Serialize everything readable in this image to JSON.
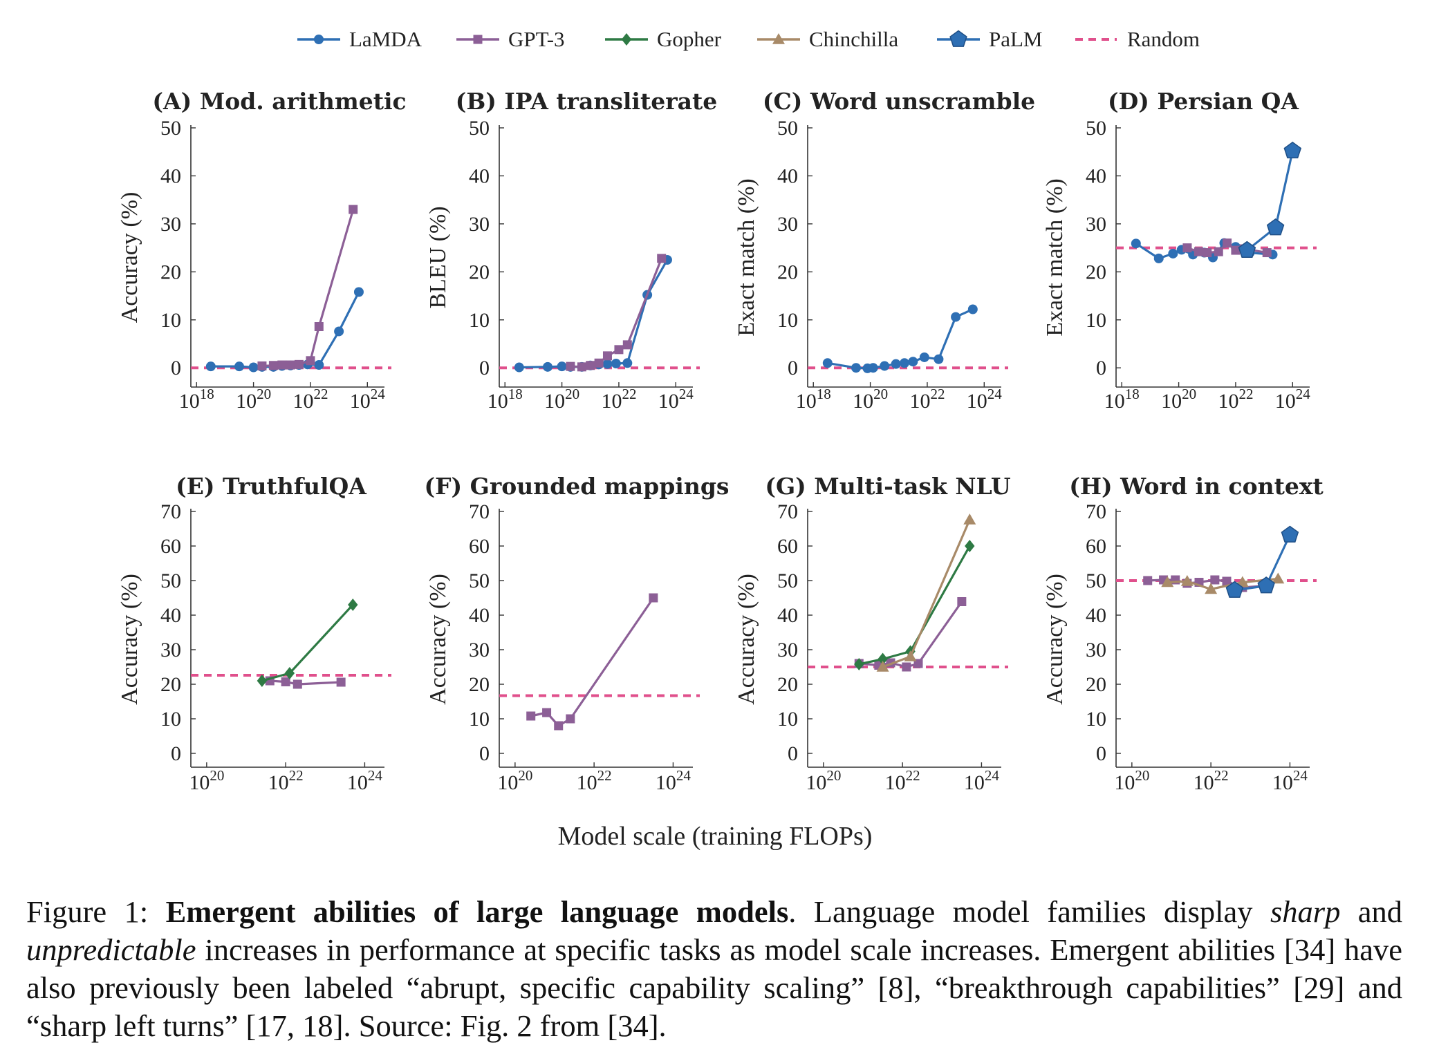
{
  "figure": {
    "shared_xlabel": "Model scale (training FLOPs)",
    "legend": [
      {
        "name": "LaMDA",
        "color": "#2e6fb4",
        "marker": "circle"
      },
      {
        "name": "GPT-3",
        "color": "#8c5f96",
        "marker": "square"
      },
      {
        "name": "Gopher",
        "color": "#2e7a44",
        "marker": "diamond"
      },
      {
        "name": "Chinchilla",
        "color": "#a88a68",
        "marker": "triangle"
      },
      {
        "name": "PaLM",
        "color": "#2e6fb4",
        "marker": "pentagon"
      },
      {
        "name": "Random",
        "color": "#e0508c",
        "marker": "dashed-line"
      }
    ]
  },
  "caption": {
    "prefix": "Figure 1: ",
    "bold": "Emergent abilities of large language models",
    "part1": ". Language model families display ",
    "italic1": "sharp",
    "part2": " and ",
    "italic2": "unpredictable",
    "part3": " increases in performance at specific tasks as model scale increases. Emergent abilities [34] have also previously been labeled “abrupt, specific capability scaling” [8], “breakthrough capabilities” [29] and “sharp left turns” [17, 18]. Source: Fig. 2 from [34]."
  },
  "chart_data": [
    {
      "type": "line",
      "title": "(A) Mod. arithmetic",
      "xlabel": "",
      "ylabel": "Accuracy (%)",
      "x_scale": "log10",
      "xlim": [
        17.8,
        24.6
      ],
      "xticks": [
        18,
        20,
        22,
        24
      ],
      "ylim": [
        -4,
        50
      ],
      "yticks": [
        0,
        10,
        20,
        30,
        40,
        50
      ],
      "random": 0,
      "series": [
        {
          "name": "LaMDA",
          "x": [
            18.5,
            19.5,
            20.0,
            20.3,
            20.7,
            21.0,
            21.3,
            21.6,
            21.9,
            22.3,
            23.0,
            23.7
          ],
          "y": [
            0.3,
            0.3,
            0.1,
            0.2,
            0.2,
            0.4,
            0.5,
            0.6,
            0.7,
            0.6,
            7.6,
            15.8
          ]
        },
        {
          "name": "GPT-3",
          "x": [
            20.3,
            20.7,
            21.0,
            21.3,
            21.6,
            22.0,
            22.3,
            23.5
          ],
          "y": [
            0.4,
            0.5,
            0.6,
            0.6,
            0.7,
            1.5,
            8.6,
            33.0
          ]
        }
      ]
    },
    {
      "type": "line",
      "title": "(B) IPA transliterate",
      "xlabel": "",
      "ylabel": "BLEU (%)",
      "x_scale": "log10",
      "xlim": [
        17.8,
        24.6
      ],
      "xticks": [
        18,
        20,
        22,
        24
      ],
      "ylim": [
        -4,
        50
      ],
      "yticks": [
        0,
        10,
        20,
        30,
        40,
        50
      ],
      "random": 0,
      "series": [
        {
          "name": "LaMDA",
          "x": [
            18.5,
            19.5,
            20.0,
            20.3,
            20.7,
            21.0,
            21.3,
            21.6,
            21.9,
            22.3,
            23.0,
            23.7
          ],
          "y": [
            0.1,
            0.2,
            0.3,
            0.2,
            0.2,
            0.5,
            0.7,
            0.8,
            0.9,
            1.0,
            15.2,
            22.5
          ]
        },
        {
          "name": "GPT-3",
          "x": [
            20.3,
            20.7,
            21.0,
            21.3,
            21.6,
            22.0,
            22.3,
            23.5
          ],
          "y": [
            0.3,
            0.2,
            0.5,
            1.0,
            2.5,
            3.8,
            4.8,
            22.8
          ]
        }
      ]
    },
    {
      "type": "line",
      "title": "(C) Word unscramble",
      "xlabel": "",
      "ylabel": "Exact match (%)",
      "x_scale": "log10",
      "xlim": [
        17.8,
        24.6
      ],
      "xticks": [
        18,
        20,
        22,
        24
      ],
      "ylim": [
        -4,
        50
      ],
      "yticks": [
        0,
        10,
        20,
        30,
        40,
        50
      ],
      "random": 0,
      "series": [
        {
          "name": "LaMDA",
          "x": [
            18.5,
            19.5,
            19.9,
            20.1,
            20.5,
            20.9,
            21.2,
            21.5,
            21.9,
            22.4,
            23.0,
            23.6
          ],
          "y": [
            1.0,
            0.0,
            -0.1,
            0.0,
            0.4,
            0.8,
            1.0,
            1.3,
            2.2,
            1.8,
            10.6,
            12.2
          ]
        }
      ]
    },
    {
      "type": "line",
      "title": "(D) Persian QA",
      "xlabel": "",
      "ylabel": "Exact match (%)",
      "x_scale": "log10",
      "xlim": [
        17.8,
        24.6
      ],
      "xticks": [
        18,
        20,
        22,
        24
      ],
      "ylim": [
        -4,
        50
      ],
      "yticks": [
        0,
        10,
        20,
        30,
        40,
        50
      ],
      "random": 25,
      "series": [
        {
          "name": "LaMDA",
          "x": [
            18.5,
            19.3,
            19.8,
            20.1,
            20.5,
            20.9,
            21.2,
            21.6,
            22.0,
            22.5,
            23.3
          ],
          "y": [
            25.9,
            22.8,
            23.8,
            24.6,
            23.6,
            24.0,
            23.0,
            26.0,
            25.2,
            24.0,
            23.6
          ]
        },
        {
          "name": "GPT-3",
          "x": [
            20.3,
            20.7,
            21.0,
            21.4,
            21.7,
            22.0,
            22.3,
            23.1
          ],
          "y": [
            25.0,
            24.2,
            24.0,
            24.2,
            26.0,
            24.5,
            24.8,
            24.0
          ]
        },
        {
          "name": "PaLM",
          "x": [
            22.4,
            23.4,
            24.0
          ],
          "y": [
            24.5,
            29.2,
            45.2
          ]
        }
      ]
    },
    {
      "type": "line",
      "title": "(E) TruthfulQA",
      "xlabel": "",
      "ylabel": "Accuracy (%)",
      "x_scale": "log10",
      "xlim": [
        19.6,
        24.5
      ],
      "xticks": [
        20,
        22,
        24
      ],
      "ylim": [
        -4,
        70
      ],
      "yticks": [
        0,
        10,
        20,
        30,
        40,
        50,
        60,
        70
      ],
      "random": 22.6,
      "series": [
        {
          "name": "GPT-3",
          "x": [
            21.6,
            22.0,
            22.3,
            23.4
          ],
          "y": [
            21.0,
            20.7,
            20.0,
            20.6
          ]
        },
        {
          "name": "Gopher",
          "x": [
            21.4,
            22.1,
            23.7
          ],
          "y": [
            21.0,
            23.2,
            43.0
          ]
        }
      ]
    },
    {
      "type": "line",
      "title": "(F) Grounded mappings",
      "xlabel": "",
      "ylabel": "Accuracy (%)",
      "x_scale": "log10",
      "xlim": [
        19.6,
        24.5
      ],
      "xticks": [
        20,
        22,
        24
      ],
      "ylim": [
        -4,
        70
      ],
      "yticks": [
        0,
        10,
        20,
        30,
        40,
        50,
        60,
        70
      ],
      "random": 16.7,
      "series": [
        {
          "name": "GPT-3",
          "x": [
            20.4,
            20.8,
            21.1,
            21.4,
            23.5
          ],
          "y": [
            10.8,
            11.8,
            8.0,
            10.0,
            45.0
          ]
        }
      ]
    },
    {
      "type": "line",
      "title": "(G) Multi-task NLU",
      "xlabel": "",
      "ylabel": "Accuracy (%)",
      "x_scale": "log10",
      "xlim": [
        19.6,
        24.5
      ],
      "xticks": [
        20,
        22,
        24
      ],
      "ylim": [
        -4,
        70
      ],
      "yticks": [
        0,
        10,
        20,
        30,
        40,
        50,
        60,
        70
      ],
      "random": 25,
      "series": [
        {
          "name": "GPT-3",
          "x": [
            20.9,
            21.4,
            21.7,
            22.1,
            22.4,
            23.5
          ],
          "y": [
            26.0,
            25.5,
            26.2,
            25.0,
            26.0,
            43.9
          ]
        },
        {
          "name": "Gopher",
          "x": [
            20.9,
            21.5,
            22.2,
            23.7
          ],
          "y": [
            25.8,
            27.3,
            29.5,
            60.0
          ]
        },
        {
          "name": "Chinchilla",
          "x": [
            21.5,
            22.2,
            23.7
          ],
          "y": [
            25.0,
            28.0,
            67.6
          ]
        }
      ]
    },
    {
      "type": "line",
      "title": "(H) Word in context",
      "xlabel": "",
      "ylabel": "Accuracy (%)",
      "x_scale": "log10",
      "xlim": [
        19.6,
        24.5
      ],
      "xticks": [
        20,
        22,
        24
      ],
      "ylim": [
        -4,
        70
      ],
      "yticks": [
        0,
        10,
        20,
        30,
        40,
        50,
        60,
        70
      ],
      "random": 50,
      "series": [
        {
          "name": "GPT-3",
          "x": [
            20.4,
            20.8,
            21.1,
            21.4,
            21.7,
            22.1,
            22.4,
            22.8,
            23.4
          ],
          "y": [
            50.0,
            50.2,
            50.2,
            49.2,
            49.5,
            50.2,
            49.8,
            48.0,
            48.5
          ]
        },
        {
          "name": "Chinchilla",
          "x": [
            20.9,
            21.4,
            22.0,
            22.8,
            23.7
          ],
          "y": [
            49.5,
            49.8,
            47.5,
            49.5,
            50.5
          ]
        },
        {
          "name": "PaLM",
          "x": [
            22.6,
            23.4,
            24.0
          ],
          "y": [
            47.2,
            48.5,
            63.2
          ]
        }
      ]
    }
  ]
}
